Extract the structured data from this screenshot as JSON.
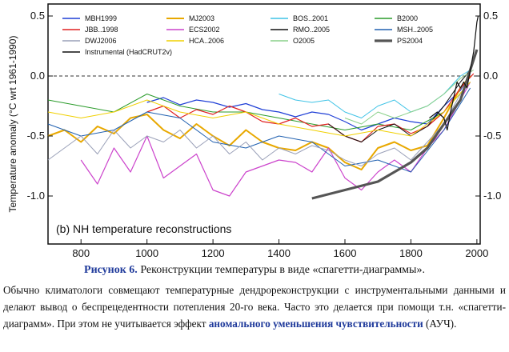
{
  "caption": {
    "label": "Рисунок 6.",
    "text": " Реконструкции температуры в виде «спагетти-диаграммы»."
  },
  "body": {
    "part1": "Обычно климатологи совмещают температурные дендрореконструкции с инструментальными данными и делают вывод о беспрецедентности потепления 20-го века. Часто это делается при помощи т.н. «спагетти-диаграмм». При этом не учитывается эффект ",
    "highlight": "аномального уменьшения чувствительности",
    "part2": " (АУЧ)."
  },
  "chart_data": {
    "type": "line",
    "title": "(b) NH temperature reconstructions",
    "ylabel": "Temperature anomaly (°C wrt 1961-1990)",
    "xlabel": "",
    "xlim": [
      700,
      2010
    ],
    "ylim": [
      -1.4,
      0.6
    ],
    "xticks": [
      800,
      1000,
      1200,
      1400,
      1600,
      1800,
      2000
    ],
    "yticks_left": [
      "0.5",
      "0.0",
      "-0.5",
      "-1.0"
    ],
    "yticks_left_values": [
      0.5,
      0.0,
      -0.5,
      -1.0
    ],
    "yticks_right": [
      "0.5",
      "0.0",
      "-0.5",
      "-1.0"
    ],
    "yticks_right_values": [
      0.5,
      0.0,
      -0.5,
      -1.0
    ],
    "zero_line": 0.0,
    "legend": [
      [
        "MBH1999",
        "MJ2003",
        "BOS..2001",
        "B2000"
      ],
      [
        "JBB..1998",
        "ECS2002",
        "RMO..2005",
        "MSH..2005"
      ],
      [
        "DWJ2006",
        "HCA..2006",
        "O2005",
        "PS2004"
      ],
      [
        "Instrumental (HadCRUT2v)"
      ]
    ],
    "series": [
      {
        "name": "MBH1999",
        "color": "#1f3fd6",
        "width": 1.2,
        "x": [
          1000,
          1050,
          1100,
          1150,
          1200,
          1250,
          1300,
          1350,
          1400,
          1450,
          1500,
          1550,
          1600,
          1650,
          1700,
          1750,
          1800,
          1850,
          1900,
          1950,
          1980
        ],
        "y": [
          -0.22,
          -0.18,
          -0.24,
          -0.2,
          -0.22,
          -0.26,
          -0.23,
          -0.28,
          -0.3,
          -0.34,
          -0.3,
          -0.32,
          -0.38,
          -0.45,
          -0.4,
          -0.35,
          -0.38,
          -0.4,
          -0.25,
          -0.12,
          0.02
        ]
      },
      {
        "name": "MJ2003",
        "color": "#e8a800",
        "width": 2.0,
        "x": [
          700,
          750,
          800,
          850,
          900,
          950,
          1000,
          1050,
          1100,
          1150,
          1200,
          1250,
          1300,
          1350,
          1400,
          1450,
          1500,
          1550,
          1600,
          1650,
          1700,
          1750,
          1800,
          1850,
          1900,
          1950,
          1980
        ],
        "y": [
          -0.5,
          -0.45,
          -0.55,
          -0.42,
          -0.48,
          -0.35,
          -0.32,
          -0.45,
          -0.52,
          -0.4,
          -0.5,
          -0.58,
          -0.45,
          -0.55,
          -0.6,
          -0.62,
          -0.55,
          -0.6,
          -0.72,
          -0.78,
          -0.6,
          -0.55,
          -0.62,
          -0.58,
          -0.35,
          -0.1,
          0.0
        ]
      },
      {
        "name": "BOS..2001",
        "color": "#3fc3e6",
        "width": 1.0,
        "x": [
          1400,
          1450,
          1500,
          1550,
          1600,
          1650,
          1700,
          1750,
          1800,
          1850,
          1900,
          1950,
          1980
        ],
        "y": [
          -0.15,
          -0.2,
          -0.22,
          -0.2,
          -0.3,
          -0.35,
          -0.25,
          -0.2,
          -0.3,
          -0.25,
          -0.15,
          0.0,
          0.05
        ]
      },
      {
        "name": "B2000",
        "color": "#2a9b2a",
        "width": 1.0,
        "x": [
          700,
          800,
          900,
          1000,
          1100,
          1200,
          1300,
          1400,
          1500,
          1600,
          1700,
          1800,
          1900,
          1980
        ],
        "y": [
          -0.2,
          -0.25,
          -0.3,
          -0.15,
          -0.25,
          -0.3,
          -0.3,
          -0.35,
          -0.4,
          -0.45,
          -0.4,
          -0.45,
          -0.3,
          -0.05
        ]
      },
      {
        "name": "JBB..1998",
        "color": "#e02020",
        "width": 1.2,
        "x": [
          1000,
          1050,
          1100,
          1150,
          1200,
          1250,
          1300,
          1350,
          1400,
          1450,
          1500,
          1550,
          1600,
          1650,
          1700,
          1750,
          1800,
          1850,
          1900,
          1950,
          1990
        ],
        "y": [
          -0.3,
          -0.25,
          -0.35,
          -0.28,
          -0.32,
          -0.25,
          -0.3,
          -0.38,
          -0.4,
          -0.35,
          -0.42,
          -0.4,
          -0.5,
          -0.55,
          -0.42,
          -0.4,
          -0.48,
          -0.42,
          -0.3,
          -0.1,
          0.02
        ]
      },
      {
        "name": "ECS2002",
        "color": "#cc44cc",
        "width": 1.2,
        "x": [
          800,
          850,
          900,
          950,
          1000,
          1050,
          1100,
          1150,
          1200,
          1250,
          1300,
          1350,
          1400,
          1450,
          1500,
          1550,
          1600,
          1650,
          1700,
          1750,
          1800,
          1850,
          1900,
          1950,
          1980
        ],
        "y": [
          -0.7,
          -0.9,
          -0.6,
          -0.8,
          -0.5,
          -0.85,
          -0.75,
          -0.65,
          -0.95,
          -1.0,
          -0.8,
          -0.75,
          -0.7,
          -0.72,
          -0.8,
          -0.6,
          -0.85,
          -0.95,
          -0.8,
          -0.7,
          -0.8,
          -0.6,
          -0.45,
          -0.2,
          -0.05
        ]
      },
      {
        "name": "RMO..2005",
        "color": "#111111",
        "width": 1.0,
        "x": [
          1550,
          1600,
          1650,
          1700,
          1750,
          1800,
          1850,
          1900,
          1950,
          1980
        ],
        "y": [
          -0.4,
          -0.5,
          -0.55,
          -0.45,
          -0.4,
          -0.5,
          -0.42,
          -0.25,
          -0.05,
          0.05
        ]
      },
      {
        "name": "MSH..2005",
        "color": "#2060b0",
        "width": 1.0,
        "x": [
          700,
          800,
          900,
          1000,
          1100,
          1200,
          1300,
          1400,
          1500,
          1600,
          1700,
          1800,
          1900,
          1980
        ],
        "y": [
          -0.4,
          -0.5,
          -0.45,
          -0.3,
          -0.35,
          -0.55,
          -0.6,
          -0.5,
          -0.55,
          -0.75,
          -0.7,
          -0.8,
          -0.45,
          -0.1
        ]
      },
      {
        "name": "DWJ2006",
        "color": "#9aa0b8",
        "width": 1.0,
        "x": [
          700,
          750,
          800,
          850,
          900,
          950,
          1000,
          1050,
          1100,
          1150,
          1200,
          1250,
          1300,
          1350,
          1400,
          1450,
          1500,
          1550,
          1600,
          1650,
          1700,
          1750,
          1800,
          1850,
          1900,
          1950,
          1980
        ],
        "y": [
          -0.7,
          -0.6,
          -0.5,
          -0.65,
          -0.45,
          -0.6,
          -0.5,
          -0.55,
          -0.45,
          -0.6,
          -0.5,
          -0.65,
          -0.55,
          -0.7,
          -0.6,
          -0.65,
          -0.58,
          -0.62,
          -0.7,
          -0.75,
          -0.65,
          -0.6,
          -0.7,
          -0.55,
          -0.4,
          -0.15,
          -0.05
        ]
      },
      {
        "name": "HCA..2006",
        "color": "#f0d000",
        "width": 1.0,
        "x": [
          700,
          800,
          900,
          1000,
          1100,
          1200,
          1300,
          1400,
          1500,
          1600,
          1700,
          1800,
          1900,
          1980
        ],
        "y": [
          -0.3,
          -0.35,
          -0.3,
          -0.2,
          -0.3,
          -0.35,
          -0.3,
          -0.4,
          -0.45,
          -0.5,
          -0.45,
          -0.5,
          -0.3,
          -0.05
        ]
      },
      {
        "name": "O2005",
        "color": "#8ad08a",
        "width": 1.0,
        "x": [
          1600,
          1650,
          1700,
          1750,
          1800,
          1850,
          1900,
          1950,
          1990
        ],
        "y": [
          -0.35,
          -0.4,
          -0.3,
          -0.35,
          -0.3,
          -0.25,
          -0.15,
          -0.02,
          0.05
        ]
      },
      {
        "name": "PS2004",
        "color": "#555555",
        "width": 3.2,
        "x": [
          1500,
          1600,
          1700,
          1800,
          1850,
          1900,
          1950,
          2000
        ],
        "y": [
          -1.02,
          -0.95,
          -0.88,
          -0.72,
          -0.6,
          -0.4,
          -0.2,
          0.22
        ]
      },
      {
        "name": "Instrumental (HadCRUT2v)",
        "color": "#111111",
        "width": 1.2,
        "x": [
          1856,
          1880,
          1900,
          1910,
          1920,
          1940,
          1950,
          1960,
          1970,
          1980,
          1990,
          2000,
          2004
        ],
        "y": [
          -0.35,
          -0.3,
          -0.35,
          -0.45,
          -0.3,
          -0.05,
          -0.1,
          -0.05,
          -0.1,
          0.05,
          0.2,
          0.45,
          0.5
        ]
      }
    ]
  }
}
